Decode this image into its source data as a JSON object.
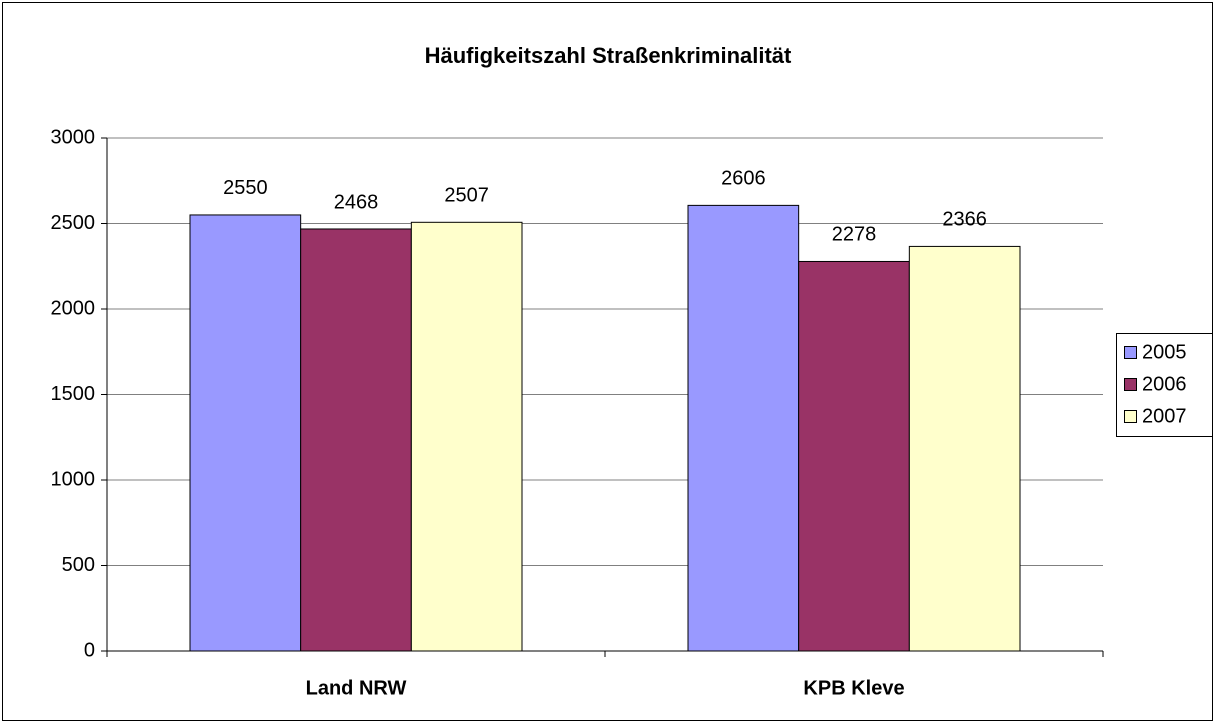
{
  "chart_data": {
    "type": "bar",
    "title": "Häufigkeitszahl Straßenkriminalität",
    "categories": [
      "Land NRW",
      "KPB Kleve"
    ],
    "series": [
      {
        "name": "2005",
        "color": "#9999ff",
        "values": [
          2550,
          2606
        ]
      },
      {
        "name": "2006",
        "color": "#993366",
        "values": [
          2468,
          2278
        ]
      },
      {
        "name": "2007",
        "color": "#ffffcc",
        "values": [
          2507,
          2366
        ]
      }
    ],
    "ylim": [
      0,
      3000
    ],
    "yticks": [
      0,
      500,
      1000,
      1500,
      2000,
      2500,
      3000
    ],
    "grid": true,
    "legend": "right"
  }
}
